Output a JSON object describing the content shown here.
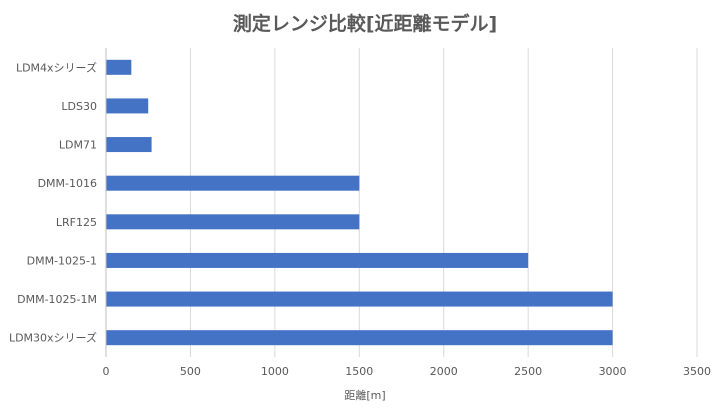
{
  "chart_data": {
    "type": "bar",
    "orientation": "horizontal",
    "title": "測定レンジ比較[近距離モデル]",
    "xlabel": "距離[m]",
    "ylabel": "",
    "categories": [
      "LDM4xシリーズ",
      "LDS30",
      "LDM71",
      "DMM-1016",
      "LRF125",
      "DMM-1025-1",
      "DMM-1025-1M",
      "LDM30xシリーズ"
    ],
    "values": [
      150,
      250,
      270,
      1500,
      1500,
      2500,
      3000,
      3000
    ],
    "xlim": [
      0,
      3500
    ],
    "xticks": [
      "0",
      "500",
      "1000",
      "1500",
      "2000",
      "2500",
      "3000",
      "3500"
    ],
    "grid": true,
    "legend": "none",
    "bar_color": "#4472c4"
  }
}
